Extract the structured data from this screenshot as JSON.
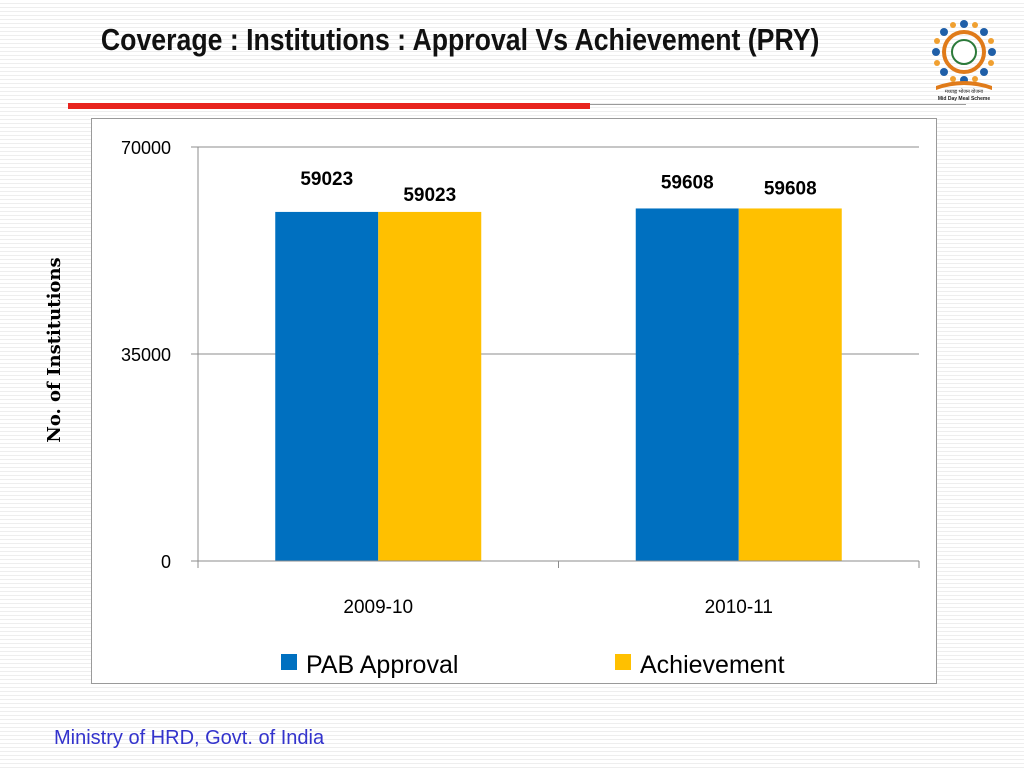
{
  "slide": {
    "title": "Coverage : Institutions : Approval Vs Achievement (PRY)",
    "footer": "Ministry of HRD, Govt. of India",
    "logo": {
      "icon": "mid-day-meal-scheme-logo",
      "caption_hindi": "मध्याह्न भोजन योजना",
      "caption": "Mid Day Meal Scheme"
    }
  },
  "chart_data": {
    "type": "bar",
    "categories": [
      "2009-10",
      "2010-11"
    ],
    "series": [
      {
        "name": "PAB Approval",
        "values": [
          59023,
          59608
        ],
        "color": "#0070c0"
      },
      {
        "name": "Achievement",
        "values": [
          59023,
          59608
        ],
        "color": "#ffc000"
      }
    ],
    "data_labels": [
      [
        "59023",
        "59023"
      ],
      [
        "59608",
        "59608"
      ]
    ],
    "title": "",
    "xlabel": "",
    "ylabel": "No. of Institutions",
    "ylim": [
      0,
      70000
    ],
    "yticks": [
      "0",
      "35000",
      "70000"
    ],
    "grid": true,
    "legend": "bottom"
  },
  "colors": {
    "accent_rule": "#e8241e",
    "footer_text": "#3333cc"
  }
}
